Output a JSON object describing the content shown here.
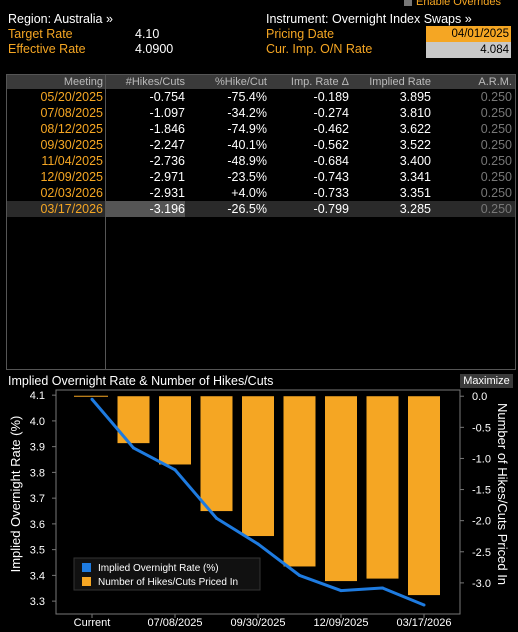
{
  "header": {
    "enable_overrides": "Enable Overrides",
    "region": "Region: Australia »",
    "instrument": "Instrument: Overnight Index Swaps »",
    "target_rate_label": "Target Rate",
    "target_rate_value": "4.10",
    "effective_rate_label": "Effective Rate",
    "effective_rate_value": "4.0900",
    "pricing_date_label": "Pricing Date",
    "pricing_date_value": "04/01/2025",
    "cur_imp_label": "Cur. Imp. O/N Rate",
    "cur_imp_value": "4.084"
  },
  "table": {
    "headers": [
      "Meeting",
      "#Hikes/Cuts",
      "%Hike/Cut",
      "Imp. Rate Δ",
      "Implied Rate",
      "A.R.M."
    ],
    "rows": [
      [
        "05/20/2025",
        "-0.754",
        "-75.4%",
        "-0.189",
        "3.895",
        "0.250"
      ],
      [
        "07/08/2025",
        "-1.097",
        "-34.2%",
        "-0.274",
        "3.810",
        "0.250"
      ],
      [
        "08/12/2025",
        "-1.846",
        "-74.9%",
        "-0.462",
        "3.622",
        "0.250"
      ],
      [
        "09/30/2025",
        "-2.247",
        "-40.1%",
        "-0.562",
        "3.522",
        "0.250"
      ],
      [
        "11/04/2025",
        "-2.736",
        "-48.9%",
        "-0.684",
        "3.400",
        "0.250"
      ],
      [
        "12/09/2025",
        "-2.971",
        "-23.5%",
        "-0.743",
        "3.341",
        "0.250"
      ],
      [
        "02/03/2026",
        "-2.931",
        "+4.0%",
        "-0.733",
        "3.351",
        "0.250"
      ],
      [
        "03/17/2026",
        "-3.196",
        "-26.5%",
        "-0.799",
        "3.285",
        "0.250"
      ]
    ],
    "selected_row": 7
  },
  "chart_title": "Implied Overnight Rate & Number of Hikes/Cuts",
  "maximize_label": "Maximize",
  "colors": {
    "accent": "#f5a623",
    "line": "#1e7be0",
    "bar": "#f5a623"
  },
  "chart_data": {
    "type": "bar",
    "title": "Implied Overnight Rate & Number of Hikes/Cuts",
    "x": [
      "Current",
      "05/20/2025",
      "07/08/2025",
      "08/12/2025",
      "09/30/2025",
      "11/04/2025",
      "12/09/2025",
      "02/03/2026",
      "03/17/2026"
    ],
    "x_tick_labels": [
      "Current",
      "07/08/2025",
      "09/30/2025",
      "12/09/2025",
      "03/17/2026"
    ],
    "ylabel_left": "Implied Overnight Rate (%)",
    "ylabel_right": "Number of Hikes/Cuts Priced In",
    "ylim_left": [
      3.25,
      4.12
    ],
    "ylim_right": [
      -3.5,
      0.1
    ],
    "yticks_left": [
      "4.1",
      "4.0",
      "3.9",
      "3.8",
      "3.7",
      "3.6",
      "3.5",
      "3.4",
      "3.3"
    ],
    "yticks_right": [
      "0.0",
      "-0.5",
      "-1.0",
      "-1.5",
      "-2.0",
      "-2.5",
      "-3.0"
    ],
    "legend_position": "bottom-left",
    "series": [
      {
        "name": "Implied Overnight Rate (%)",
        "type": "line",
        "values": [
          4.084,
          3.895,
          3.81,
          3.622,
          3.522,
          3.4,
          3.341,
          3.351,
          3.285
        ]
      },
      {
        "name": "Number of Hikes/Cuts Priced In",
        "type": "bar",
        "values": [
          null,
          -0.754,
          -1.097,
          -1.846,
          -2.247,
          -2.736,
          -2.971,
          -2.931,
          -3.196
        ]
      }
    ]
  }
}
